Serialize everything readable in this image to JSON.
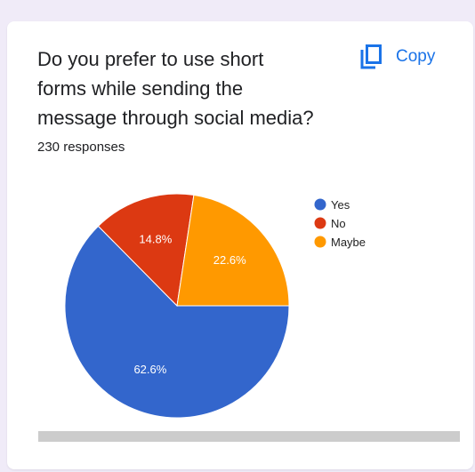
{
  "card": {
    "question": "Do you prefer to use short\nforms while sending the\nmessage through social media?",
    "responses": "230 responses",
    "copy_label": "Copy",
    "copy_icon": "copy-icon"
  },
  "chart_data": {
    "type": "pie",
    "categories": [
      "Yes",
      "No",
      "Maybe"
    ],
    "values": [
      62.6,
      14.8,
      22.6
    ],
    "labels": [
      "62.6%",
      "14.8%",
      "22.6%"
    ],
    "colors": [
      "#3366cc",
      "#dc3912",
      "#ff9900"
    ],
    "legend_position": "right"
  }
}
